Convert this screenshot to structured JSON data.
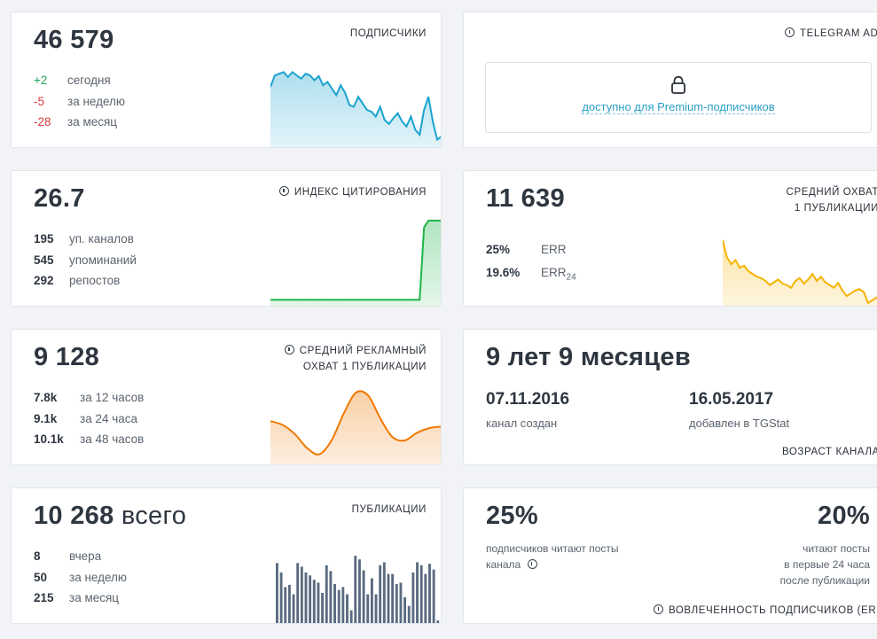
{
  "subscribers": {
    "value": "46 579",
    "title": "ПОДПИСЧИКИ",
    "rows": [
      {
        "value": "+2",
        "label": "сегодня"
      },
      {
        "value": "-5",
        "label": "за неделю"
      },
      {
        "value": "-28",
        "label": "за месяц"
      }
    ],
    "spark": [
      0.72,
      0.86,
      0.88,
      0.9,
      0.84,
      0.9,
      0.86,
      0.82,
      0.88,
      0.86,
      0.8,
      0.85,
      0.74,
      0.78,
      0.7,
      0.62,
      0.74,
      0.65,
      0.5,
      0.48,
      0.6,
      0.52,
      0.44,
      0.42,
      0.36,
      0.48,
      0.32,
      0.27,
      0.34,
      0.4,
      0.3,
      0.24,
      0.36,
      0.2,
      0.14,
      0.44,
      0.6,
      0.3,
      0.08,
      0.12
    ],
    "color": "#1aa3cf"
  },
  "ads": {
    "title": "TELEGRAM ADS",
    "premium_text": "доступно для Premium-подписчиков",
    "lock_icon": "lock-icon"
  },
  "citation": {
    "value": "26.7",
    "title": "ИНДЕКС ЦИТИРОВАНИЯ",
    "rows": [
      {
        "value": "195",
        "label": "уп. каналов"
      },
      {
        "value": "545",
        "label": "упоминаний"
      },
      {
        "value": "292",
        "label": "репостов"
      }
    ],
    "spark": [
      0.05,
      0.05,
      0.05,
      0.05,
      0.05,
      0.05,
      0.05,
      0.05,
      0.05,
      0.05,
      0.05,
      0.05,
      0.05,
      0.05,
      0.05,
      0.05,
      0.05,
      0.05,
      0.05,
      0.05,
      0.05,
      0.05,
      0.05,
      0.05,
      0.05,
      0.05,
      0.05,
      0.05,
      0.05,
      0.05,
      0.05,
      0.05,
      0.05,
      0.05,
      0.05,
      0.9,
      0.98,
      0.98,
      0.98,
      0.98
    ],
    "color": "#1fb54a"
  },
  "reach": {
    "value": "11 639",
    "title_line1": "СРЕДНИЙ ОХВАТ",
    "title_line2": "1 ПУБЛИКАЦИИ",
    "rows": [
      {
        "value": "25%",
        "label": "ERR",
        "sub": ""
      },
      {
        "value": "19.6%",
        "label": "ERR",
        "sub": "24"
      }
    ],
    "spark": [
      0.95,
      0.7,
      0.6,
      0.66,
      0.55,
      0.58,
      0.5,
      0.46,
      0.42,
      0.4,
      0.36,
      0.3,
      0.34,
      0.38,
      0.32,
      0.3,
      0.26,
      0.36,
      0.4,
      0.32,
      0.38,
      0.46,
      0.36,
      0.42,
      0.34,
      0.3,
      0.26,
      0.33,
      0.22,
      0.14,
      0.18,
      0.22,
      0.24,
      0.2,
      0.04,
      0.08,
      0.12,
      0.14,
      0.12,
      0.18
    ],
    "color": "#f5b300"
  },
  "ad_reach": {
    "value": "9 128",
    "title_line1": "СРЕДНИЙ РЕКЛАМНЫЙ",
    "title_line2": "ОХВАТ 1 ПУБЛИКАЦИИ",
    "rows": [
      {
        "value": "7.8k",
        "label": "за 12 часов"
      },
      {
        "value": "9.1k",
        "label": "за 24 часа"
      },
      {
        "value": "10.1k",
        "label": "за 48 часов"
      }
    ],
    "spark": [
      0.55,
      0.5,
      0.38,
      0.2,
      0.12,
      0.3,
      0.65,
      0.92,
      0.88,
      0.58,
      0.34,
      0.3,
      0.4,
      0.46,
      0.48
    ],
    "color": "#f07800"
  },
  "age": {
    "value": "9 лет 9 месяцев",
    "created_date": "07.11.2016",
    "created_label": "канал создан",
    "added_date": "16.05.2017",
    "added_label": "добавлен в TGStat",
    "title": "ВОЗРАСТ КАНАЛА"
  },
  "posts": {
    "value": "10 268",
    "suffix": " всего",
    "title": "ПУБЛИКАЦИИ",
    "rows": [
      {
        "value": "8",
        "label": "вчера"
      },
      {
        "value": "50",
        "label": "за неделю"
      },
      {
        "value": "215",
        "label": "за месяц"
      }
    ],
    "bars": [
      0.85,
      0.72,
      0.52,
      0.55,
      0.42,
      0.85,
      0.8,
      0.72,
      0.68,
      0.62,
      0.58,
      0.44,
      0.82,
      0.74,
      0.56,
      0.48,
      0.52,
      0.42,
      0.2,
      0.95,
      0.9,
      0.75,
      0.42,
      0.64,
      0.42,
      0.82,
      0.86,
      0.7,
      0.7,
      0.56,
      0.58,
      0.38,
      0.26,
      0.72,
      0.86,
      0.82,
      0.7,
      0.84,
      0.76,
      0.06
    ],
    "color": "#5a6a80"
  },
  "engagement": {
    "left_value": "25%",
    "left_line1": "подписчиков читают посты",
    "left_line2": "канала",
    "right_value": "20%",
    "right_line1": "читают посты",
    "right_line2": "в первые 24 часа",
    "right_line3": "после публикации",
    "title": "ВОВЛЕЧЕННОСТЬ ПОДПИСЧИКОВ (ERR)"
  }
}
